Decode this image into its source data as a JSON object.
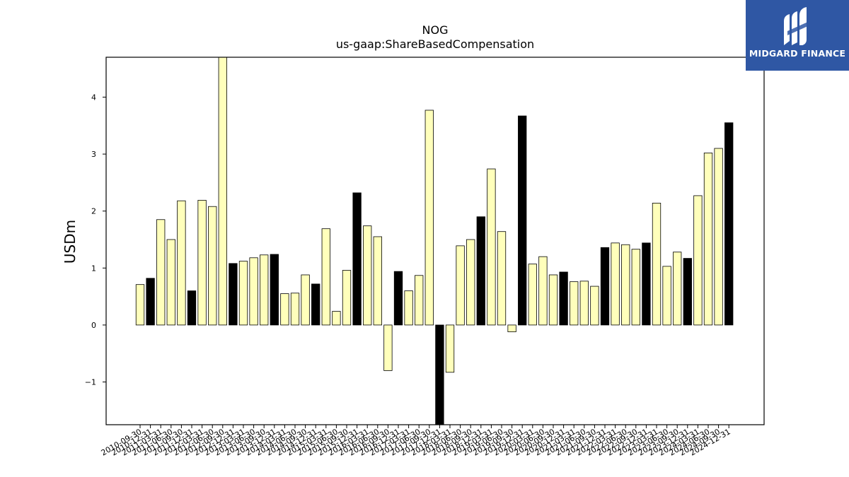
{
  "logo": {
    "text": "MIDGARD FINANCE"
  },
  "chart_data": {
    "type": "bar",
    "title": "NOG",
    "subtitle": "us-gaap:ShareBasedCompensation",
    "ylabel": "USDm",
    "xlabel": "",
    "ylim": [
      -1.75,
      4.7
    ],
    "yticks": [
      -1,
      0,
      1,
      2,
      3,
      4
    ],
    "grid": false,
    "colors": {
      "quarter": "#ffffbb",
      "year_end": "#000000",
      "edge": "#000000"
    },
    "categories": [
      "2010-09-30",
      "2010-12-31",
      "2011-03-31",
      "2011-06-30",
      "2011-09-30",
      "2011-12-31",
      "2012-03-31",
      "2012-06-30",
      "2012-09-30",
      "2012-12-31",
      "2013-03-31",
      "2013-06-30",
      "2013-09-30",
      "2013-12-31",
      "2014-03-31",
      "2014-06-30",
      "2014-09-30",
      "2014-12-31",
      "2015-03-31",
      "2015-06-30",
      "2015-09-30",
      "2015-12-31",
      "2016-03-31",
      "2016-06-30",
      "2016-09-30",
      "2016-12-31",
      "2017-03-31",
      "2017-06-30",
      "2017-09-30",
      "2017-12-31",
      "2018-03-31",
      "2018-06-30",
      "2018-09-30",
      "2018-12-31",
      "2019-03-31",
      "2019-06-30",
      "2019-09-30",
      "2019-12-31",
      "2020-03-31",
      "2020-06-30",
      "2020-09-30",
      "2020-12-31",
      "2021-03-31",
      "2021-06-30",
      "2021-09-30",
      "2021-12-31",
      "2022-03-31",
      "2022-06-30",
      "2022-09-30",
      "2022-12-31",
      "2023-03-31",
      "2023-06-30",
      "2023-09-30",
      "2023-12-31",
      "2024-03-31",
      "2024-06-30",
      "2024-09-30",
      "2024-12-31"
    ],
    "values": [
      0.71,
      0.82,
      1.85,
      1.5,
      2.18,
      0.6,
      2.19,
      2.08,
      4.7,
      1.08,
      1.12,
      1.18,
      1.23,
      1.24,
      0.55,
      0.56,
      0.88,
      0.72,
      1.69,
      0.24,
      0.96,
      2.32,
      1.74,
      1.55,
      -0.8,
      0.94,
      0.6,
      0.87,
      3.77,
      -1.75,
      -0.83,
      1.39,
      1.5,
      1.9,
      2.74,
      1.64,
      -0.12,
      3.67,
      1.07,
      1.2,
      0.88,
      0.93,
      0.76,
      0.77,
      0.68,
      1.36,
      1.44,
      1.41,
      1.33,
      1.44,
      2.14,
      1.03,
      1.28,
      1.17,
      2.27,
      3.02,
      3.1,
      3.55
    ]
  }
}
